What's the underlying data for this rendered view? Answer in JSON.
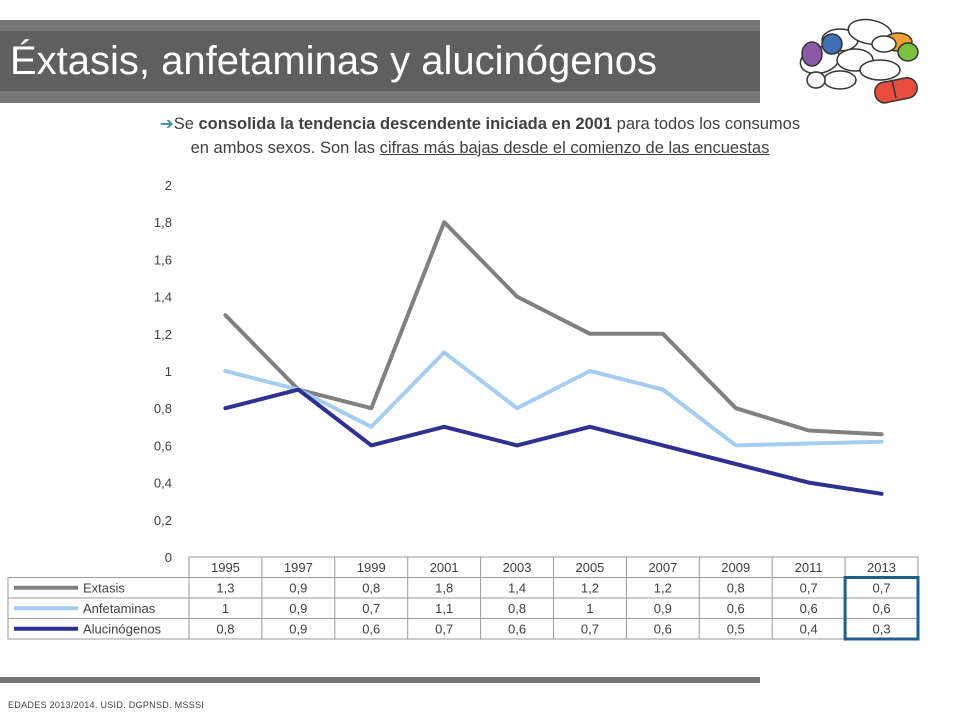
{
  "title": "Éxtasis, anfetaminas y alucinógenos",
  "subtitle": {
    "arrow": "➔",
    "p1": "Se ",
    "bold": "consolida la tendencia descendente iniciada en 2001",
    "p2": " para todos los consumos",
    "p3": "en ambos sexos. Son las ",
    "underlined": "cifras más bajas desde el comienzo de las encuestas"
  },
  "source": "EDADES 2013/2014. USID. DGPNSD. MSSSI",
  "colors": {
    "extasis": "#808080",
    "anfetaminas": "#a5cdf2",
    "alucinogenos": "#2e3191",
    "highlight_box": "#1f5f8c"
  },
  "chart_data": {
    "type": "line",
    "categories": [
      "1995",
      "1997",
      "1999",
      "2001",
      "2003",
      "2005",
      "2007",
      "2009",
      "2011",
      "2013"
    ],
    "ylim": [
      0,
      2
    ],
    "y_ticks": [
      "0",
      "0,2",
      "0,4",
      "0,6",
      "0,8",
      "1",
      "1,2",
      "1,4",
      "1,6",
      "1,8",
      "2"
    ],
    "grid": false,
    "legend": "data-table",
    "series": [
      {
        "name": "Extasis",
        "values": [
          1.3,
          0.9,
          0.8,
          1.8,
          1.4,
          1.2,
          1.2,
          0.8,
          0.68,
          0.66
        ],
        "labels": [
          "1,3",
          "0,9",
          "0,8",
          "1,8",
          "1,4",
          "1,2",
          "1,2",
          "0,8",
          "0,7",
          "0,7"
        ]
      },
      {
        "name": "Anfetaminas",
        "values": [
          1.0,
          0.9,
          0.7,
          1.1,
          0.8,
          1.0,
          0.9,
          0.6,
          0.61,
          0.62
        ],
        "labels": [
          "1",
          "0,9",
          "0,7",
          "1,1",
          "0,8",
          "1",
          "0,9",
          "0,6",
          "0,6",
          "0,6"
        ]
      },
      {
        "name": "Alucinógenos",
        "values": [
          0.8,
          0.9,
          0.6,
          0.7,
          0.6,
          0.7,
          0.6,
          0.5,
          0.4,
          0.34
        ],
        "labels": [
          "0,8",
          "0,9",
          "0,6",
          "0,7",
          "0,6",
          "0,7",
          "0,6",
          "0,5",
          "0,4",
          "0,3"
        ]
      }
    ]
  }
}
